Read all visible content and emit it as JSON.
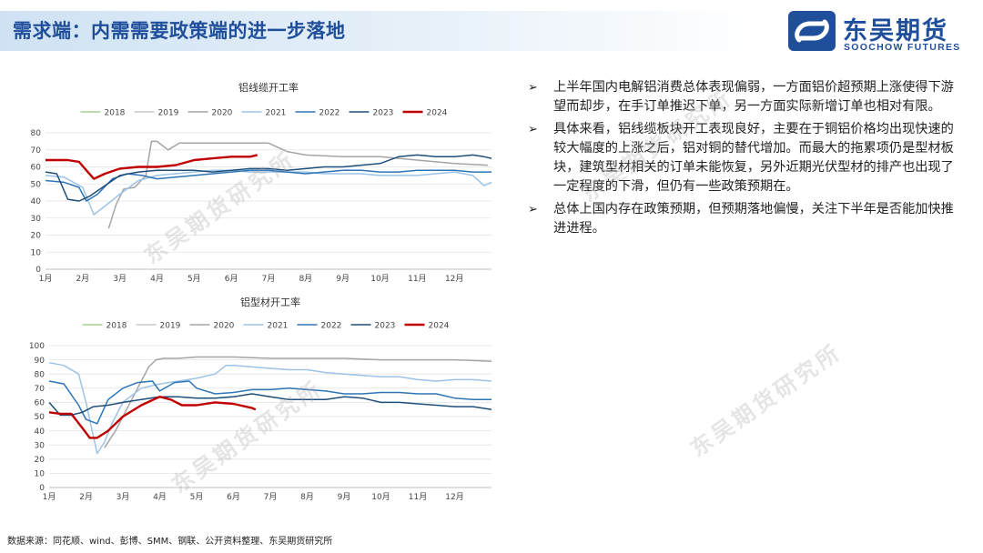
{
  "header": {
    "title": "需求端：内需需要政策端的进一步落地"
  },
  "logo": {
    "cn": "东吴期货",
    "en": "SOOCHOW FUTURES",
    "icon": "soochow-logo-icon"
  },
  "watermark": {
    "text": "东吴期货研究所"
  },
  "bullets": [
    "上半年国内电解铝消费总体表现偏弱，一方面铝价超预期上涨使得下游望而却步，在手订单推迟下单，另一方面实际新增订单也相对有限。",
    "具体来看，铝线缆板块开工表现良好，主要在于铜铝价格均出现快速的较大幅度的上涨之后，铝对铜的替代增加。而最大的拖累项仍是型材板块，建筑型材相关的订单未能恢复，另外近期光伏型材的排产也出现了一定程度的下滑，但仍有一些政策预期在。",
    "总体上国内存在政策预期，但预期落地偏慢，关注下半年是否能加快推进进程。"
  ],
  "bullet_mark": "➢",
  "source": "数据来源：同花顺、wind、彭博、SMM、钢联、公开资料整理、东吴期货研究所",
  "chart_data": [
    {
      "type": "line",
      "title": "铝线缆开工率",
      "x_labels": [
        "1月",
        "2月",
        "3月",
        "4月",
        "5月",
        "6月",
        "7月",
        "8月",
        "9月",
        "10月",
        "11月",
        "12月"
      ],
      "ylim": [
        0,
        80
      ],
      "yticks": [
        0,
        10,
        20,
        30,
        40,
        50,
        60,
        70,
        80
      ],
      "legend_position": "top",
      "grid": true,
      "series": [
        {
          "name": "2018",
          "color": "#a8d08d",
          "values": []
        },
        {
          "name": "2019",
          "color": "#c9c9c9",
          "values": []
        },
        {
          "name": "2020",
          "color": "#a5a5a5",
          "x": [
            2.7,
            2.9,
            3.1,
            3.4,
            3.7,
            3.85,
            4.0,
            4.3,
            4.6,
            5.0,
            5.5,
            6.0,
            6.5,
            7.0,
            7.5,
            8.0,
            9.0,
            10.0,
            11.0,
            12.0,
            12.9
          ],
          "values": [
            24,
            38,
            47,
            48,
            55,
            75,
            75,
            70,
            74,
            74,
            74,
            74,
            74,
            74,
            69,
            67,
            66,
            66,
            64,
            62,
            61
          ]
        },
        {
          "name": "2021",
          "color": "#9dc3e6",
          "x": [
            1.0,
            1.5,
            2.0,
            2.3,
            2.6,
            3.0,
            3.5,
            4.0,
            4.5,
            5.0,
            5.5,
            6.0,
            6.5,
            7.0,
            7.5,
            8.0,
            8.5,
            9.0,
            9.5,
            10.0,
            10.5,
            11.0,
            11.5,
            12.0,
            12.5,
            12.8,
            13.0
          ],
          "values": [
            55,
            54,
            48,
            32,
            37,
            44,
            52,
            55,
            56,
            57,
            58,
            58,
            57,
            57,
            57,
            57,
            56,
            56,
            56,
            55,
            55,
            55,
            56,
            57,
            55,
            49,
            51
          ]
        },
        {
          "name": "2022",
          "color": "#2e75b6",
          "x": [
            1.0,
            1.5,
            1.9,
            2.1,
            2.4,
            2.8,
            3.2,
            3.6,
            4.0,
            4.5,
            5.0,
            5.5,
            6.0,
            6.5,
            7.0,
            7.5,
            8.0,
            8.5,
            9.0,
            9.5,
            10.0,
            10.5,
            11.0,
            11.5,
            12.0,
            12.5,
            13.0
          ],
          "values": [
            52,
            51,
            48,
            40,
            44,
            53,
            56,
            55,
            53,
            54,
            55,
            56,
            57,
            58,
            58,
            57,
            56,
            57,
            58,
            58,
            57,
            57,
            58,
            58,
            58,
            57,
            57
          ]
        },
        {
          "name": "2023",
          "color": "#1f4e79",
          "x": [
            1.0,
            1.3,
            1.6,
            1.9,
            2.2,
            2.6,
            3.0,
            3.5,
            4.0,
            4.5,
            5.0,
            5.5,
            6.0,
            6.5,
            7.0,
            7.5,
            8.0,
            8.5,
            9.0,
            9.5,
            10.0,
            10.5,
            11.0,
            11.5,
            12.0,
            12.5,
            12.8,
            13.0
          ],
          "values": [
            57,
            56,
            41,
            40,
            43,
            49,
            55,
            57,
            58,
            58,
            58,
            57,
            58,
            59,
            59,
            58,
            59,
            60,
            60,
            61,
            62,
            66,
            67,
            66,
            66,
            67,
            66,
            65
          ]
        },
        {
          "name": "2024",
          "color": "#c00000",
          "x": [
            1.0,
            1.3,
            1.6,
            1.9,
            2.1,
            2.3,
            2.6,
            3.0,
            3.5,
            4.0,
            4.5,
            5.0,
            5.5,
            6.0,
            6.5,
            6.7
          ],
          "values": [
            64,
            64,
            64,
            63,
            58,
            53,
            56,
            59,
            60,
            60,
            61,
            64,
            65,
            66,
            66,
            67
          ]
        }
      ]
    },
    {
      "type": "line",
      "title": "铝型材开工率",
      "x_labels": [
        "1月",
        "2月",
        "3月",
        "4月",
        "5月",
        "6月",
        "7月",
        "8月",
        "9月",
        "10月",
        "11月",
        "12月"
      ],
      "ylim": [
        0,
        100
      ],
      "yticks": [
        0,
        10,
        20,
        30,
        40,
        50,
        60,
        70,
        80,
        90,
        100
      ],
      "legend_position": "top",
      "grid": true,
      "series": [
        {
          "name": "2018",
          "color": "#a8d08d",
          "values": []
        },
        {
          "name": "2019",
          "color": "#c9c9c9",
          "values": []
        },
        {
          "name": "2020",
          "color": "#a5a5a5",
          "x": [
            2.5,
            2.8,
            3.1,
            3.4,
            3.7,
            3.9,
            4.1,
            4.5,
            5.0,
            5.5,
            6.0,
            7.0,
            8.0,
            9.0,
            10.0,
            11.0,
            12.0,
            13.0
          ],
          "values": [
            28,
            40,
            55,
            70,
            85,
            90,
            91,
            91,
            92,
            92,
            92,
            91,
            91,
            91,
            90,
            90,
            90,
            89
          ]
        },
        {
          "name": "2021",
          "color": "#9dc3e6",
          "x": [
            1.0,
            1.4,
            1.8,
            2.0,
            2.3,
            2.5,
            2.7,
            3.0,
            3.5,
            4.0,
            4.5,
            5.0,
            5.5,
            5.8,
            6.0,
            6.5,
            7.0,
            7.5,
            8.0,
            8.5,
            9.0,
            9.5,
            10.0,
            10.5,
            11.0,
            11.5,
            12.0,
            12.5,
            13.0
          ],
          "values": [
            88,
            86,
            80,
            60,
            24,
            32,
            45,
            60,
            70,
            73,
            75,
            77,
            80,
            86,
            86,
            85,
            84,
            83,
            83,
            81,
            80,
            79,
            78,
            78,
            76,
            75,
            76,
            76,
            75
          ]
        },
        {
          "name": "2022",
          "color": "#2e75b6",
          "x": [
            1.0,
            1.4,
            1.8,
            2.0,
            2.3,
            2.6,
            3.0,
            3.4,
            3.8,
            4.0,
            4.4,
            4.8,
            5.0,
            5.5,
            6.0,
            6.5,
            7.0,
            7.5,
            8.0,
            8.5,
            9.0,
            9.5,
            10.0,
            10.5,
            11.0,
            11.5,
            12.0,
            12.5,
            13.0
          ],
          "values": [
            75,
            73,
            58,
            48,
            45,
            62,
            70,
            74,
            75,
            68,
            74,
            75,
            70,
            66,
            67,
            69,
            69,
            70,
            69,
            68,
            66,
            66,
            67,
            67,
            66,
            66,
            63,
            62,
            62
          ]
        },
        {
          "name": "2023",
          "color": "#1f4e79",
          "x": [
            1.0,
            1.3,
            1.6,
            1.9,
            2.2,
            2.6,
            3.0,
            3.5,
            4.0,
            4.5,
            5.0,
            5.5,
            6.0,
            6.5,
            7.0,
            7.5,
            8.0,
            8.5,
            9.0,
            9.5,
            10.0,
            10.5,
            11.0,
            11.5,
            12.0,
            12.5,
            13.0
          ],
          "values": [
            60,
            51,
            51,
            53,
            57,
            58,
            60,
            62,
            64,
            64,
            63,
            63,
            64,
            66,
            64,
            62,
            62,
            62,
            64,
            63,
            60,
            60,
            59,
            58,
            57,
            57,
            55
          ]
        },
        {
          "name": "2024",
          "color": "#c00000",
          "x": [
            1.0,
            1.3,
            1.6,
            1.9,
            2.1,
            2.3,
            2.6,
            3.0,
            3.5,
            4.0,
            4.3,
            4.6,
            5.0,
            5.5,
            6.0,
            6.5,
            6.6
          ],
          "values": [
            53,
            52,
            52,
            42,
            35,
            35,
            40,
            50,
            58,
            64,
            62,
            58,
            58,
            60,
            59,
            56,
            55
          ]
        }
      ]
    }
  ]
}
